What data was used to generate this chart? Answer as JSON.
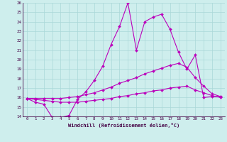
{
  "xlabel": "Windchill (Refroidissement éolien,°C)",
  "x_ticks": [
    0,
    1,
    2,
    3,
    4,
    5,
    6,
    7,
    8,
    9,
    10,
    11,
    12,
    13,
    14,
    15,
    16,
    17,
    18,
    19,
    20,
    21,
    22,
    23
  ],
  "ylim": [
    14,
    26
  ],
  "xlim": [
    -0.5,
    23.5
  ],
  "y_ticks": [
    14,
    15,
    16,
    17,
    18,
    19,
    20,
    21,
    22,
    23,
    24,
    25,
    26
  ],
  "background_color": "#ceeeed",
  "grid_color": "#aad8d8",
  "line_color": "#bb00bb",
  "line1_x": [
    0,
    1,
    2,
    3,
    4,
    5,
    6,
    7,
    8,
    9,
    10,
    11,
    12,
    13,
    14,
    15,
    16,
    17,
    18,
    19,
    20,
    21,
    22,
    23
  ],
  "line1_y": [
    15.9,
    15.5,
    15.3,
    13.9,
    13.9,
    14.1,
    15.8,
    16.6,
    17.8,
    19.3,
    21.6,
    23.5,
    26.0,
    21.0,
    24.0,
    24.5,
    24.8,
    23.2,
    20.8,
    19.0,
    20.5,
    16.0,
    16.1,
    16.1
  ],
  "line2_x": [
    0,
    1,
    2,
    3,
    4,
    5,
    6,
    7,
    8,
    9,
    10,
    11,
    12,
    13,
    14,
    15,
    16,
    17,
    18,
    19,
    20,
    21,
    22,
    23
  ],
  "line2_y": [
    15.9,
    15.9,
    15.9,
    15.9,
    15.9,
    16.0,
    16.1,
    16.3,
    16.5,
    16.8,
    17.1,
    17.5,
    17.8,
    18.1,
    18.5,
    18.8,
    19.1,
    19.4,
    19.6,
    19.2,
    18.1,
    17.2,
    16.4,
    16.1
  ],
  "line3_x": [
    0,
    1,
    2,
    3,
    4,
    5,
    6,
    7,
    8,
    9,
    10,
    11,
    12,
    13,
    14,
    15,
    16,
    17,
    18,
    19,
    20,
    21,
    22,
    23
  ],
  "line3_y": [
    15.9,
    15.8,
    15.7,
    15.6,
    15.5,
    15.5,
    15.5,
    15.6,
    15.7,
    15.8,
    15.9,
    16.1,
    16.2,
    16.4,
    16.5,
    16.7,
    16.8,
    17.0,
    17.1,
    17.2,
    16.8,
    16.5,
    16.2,
    16.0
  ]
}
